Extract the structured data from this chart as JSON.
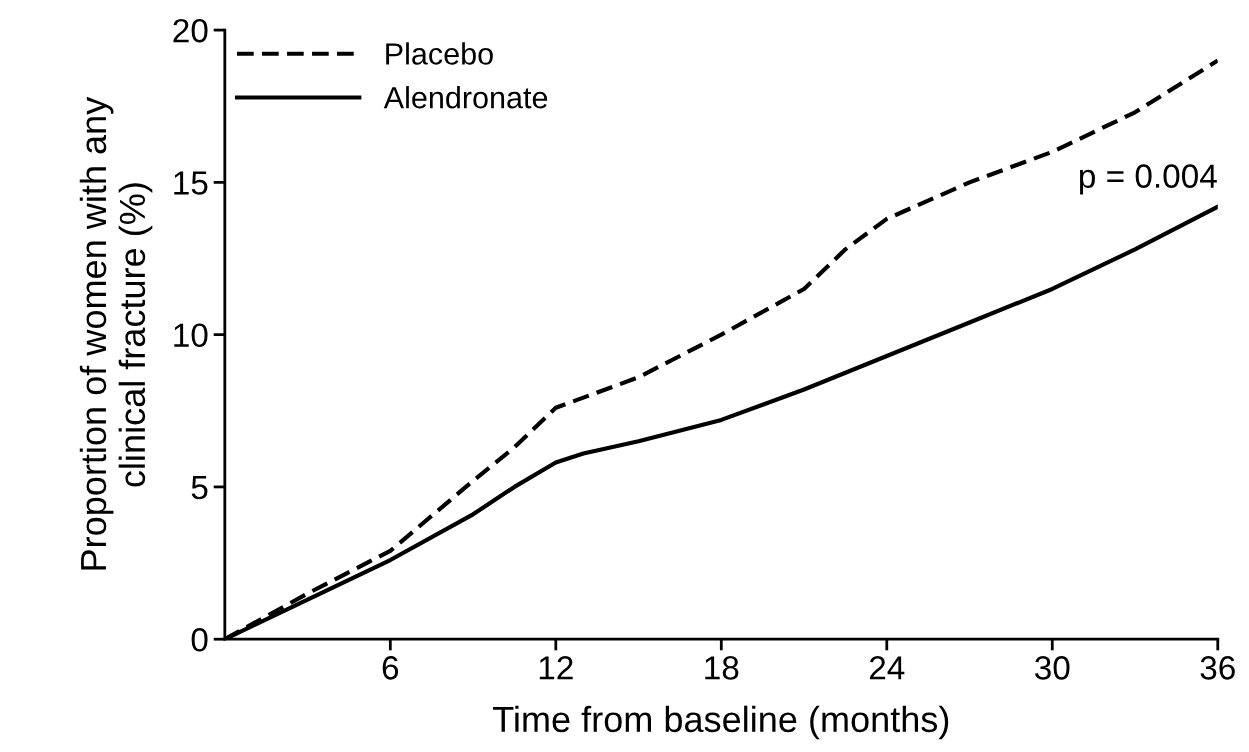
{
  "chart_data": {
    "type": "line",
    "xlabel": "Time from baseline (months)",
    "ylabel": "Proportion of women with any\nclinical fracture (%)",
    "series": [
      {
        "name": "Placebo",
        "color": "#000000",
        "line_style": "dashed",
        "x": [
          0,
          3,
          6,
          9,
          10.5,
          12,
          15,
          18,
          21,
          22.5,
          24,
          27,
          30,
          33,
          36
        ],
        "values": [
          0,
          1.5,
          2.9,
          5.2,
          6.3,
          7.6,
          8.6,
          10.0,
          11.5,
          12.8,
          13.8,
          15.0,
          16.0,
          17.3,
          19.0
        ]
      },
      {
        "name": "Alendronate",
        "color": "#000000",
        "line_style": "solid",
        "x": [
          0,
          3,
          6,
          9,
          10.5,
          12,
          13,
          15,
          18,
          21,
          24,
          27,
          30,
          33,
          36
        ],
        "values": [
          0,
          1.3,
          2.6,
          4.1,
          5.0,
          5.8,
          6.1,
          6.5,
          7.2,
          8.2,
          9.3,
          10.4,
          11.5,
          12.8,
          14.2
        ]
      }
    ],
    "xlim": [
      0,
      36
    ],
    "xticks": [
      6,
      12,
      18,
      24,
      30,
      36
    ],
    "ylim": [
      0,
      20
    ],
    "yticks": [
      0,
      5,
      10,
      15,
      20
    ],
    "annotations": [
      "p = 0.004"
    ],
    "legend": "top left",
    "grid": false
  }
}
